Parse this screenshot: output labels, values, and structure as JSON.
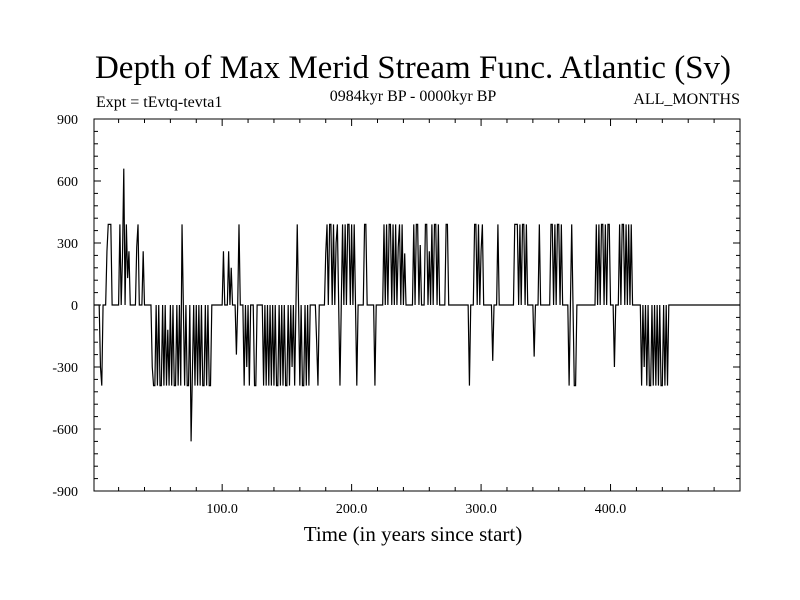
{
  "chart_data": {
    "type": "line",
    "title": "Depth of Max Merid Stream Func. Atlantic (Sv)",
    "subtitle_left": "Expt = tEvtq-tevta1",
    "subtitle_center": "0984kyr BP - 0000kyr BP",
    "subtitle_right": "ALL_MONTHS",
    "xlabel": "Time (in years since start)",
    "ylabel": "",
    "xlim": [
      1,
      500
    ],
    "ylim": [
      -900,
      900
    ],
    "x_ticks": [
      100,
      200,
      300,
      400
    ],
    "x_tick_labels": [
      "100.0",
      "200.0",
      "300.0",
      "400.0"
    ],
    "y_ticks": [
      -900,
      -600,
      -300,
      0,
      300,
      600,
      900
    ],
    "y_tick_labels": [
      "-900",
      "-600",
      "-300",
      "0",
      "300",
      "600",
      "900"
    ],
    "grid": false,
    "series": [
      {
        "name": "Depth of Max Merid Stream Func.",
        "color": "#000000",
        "points": [
          [
            1,
            0
          ],
          [
            5,
            0
          ],
          [
            6,
            -300
          ],
          [
            7,
            -390
          ],
          [
            8,
            0
          ],
          [
            10,
            0
          ],
          [
            11,
            260
          ],
          [
            12,
            390
          ],
          [
            14,
            390
          ],
          [
            15,
            0
          ],
          [
            20,
            0
          ],
          [
            21,
            390
          ],
          [
            22,
            0
          ],
          [
            23,
            230
          ],
          [
            24,
            660
          ],
          [
            25,
            0
          ],
          [
            26,
            390
          ],
          [
            27,
            130
          ],
          [
            28,
            260
          ],
          [
            29,
            0
          ],
          [
            33,
            0
          ],
          [
            34,
            280
          ],
          [
            35,
            390
          ],
          [
            36,
            0
          ],
          [
            38,
            0
          ],
          [
            39,
            260
          ],
          [
            40,
            0
          ],
          [
            45,
            0
          ],
          [
            46,
            -300
          ],
          [
            47,
            -390
          ],
          [
            48,
            -390
          ],
          [
            49,
            0
          ],
          [
            50,
            -390
          ],
          [
            51,
            0
          ],
          [
            52,
            -390
          ],
          [
            53,
            -390
          ],
          [
            54,
            0
          ],
          [
            55,
            -390
          ],
          [
            56,
            0
          ],
          [
            57,
            -390
          ],
          [
            58,
            -120
          ],
          [
            59,
            -390
          ],
          [
            60,
            0
          ],
          [
            61,
            -390
          ],
          [
            62,
            0
          ],
          [
            63,
            -390
          ],
          [
            64,
            -390
          ],
          [
            65,
            0
          ],
          [
            66,
            -390
          ],
          [
            67,
            0
          ],
          [
            68,
            -390
          ],
          [
            69,
            390
          ],
          [
            70,
            0
          ],
          [
            71,
            -390
          ],
          [
            72,
            0
          ],
          [
            73,
            -390
          ],
          [
            74,
            -390
          ],
          [
            75,
            0
          ],
          [
            76,
            -660
          ],
          [
            77,
            -330
          ],
          [
            78,
            0
          ],
          [
            79,
            -390
          ],
          [
            80,
            0
          ],
          [
            81,
            -390
          ],
          [
            82,
            0
          ],
          [
            83,
            -390
          ],
          [
            84,
            0
          ],
          [
            85,
            -390
          ],
          [
            86,
            -390
          ],
          [
            87,
            0
          ],
          [
            88,
            -390
          ],
          [
            89,
            0
          ],
          [
            90,
            -390
          ],
          [
            91,
            -390
          ],
          [
            92,
            0
          ],
          [
            100,
            0
          ],
          [
            101,
            260
          ],
          [
            102,
            0
          ],
          [
            104,
            0
          ],
          [
            105,
            260
          ],
          [
            106,
            0
          ],
          [
            107,
            180
          ],
          [
            108,
            0
          ],
          [
            110,
            0
          ],
          [
            111,
            -240
          ],
          [
            112,
            0
          ],
          [
            113,
            390
          ],
          [
            114,
            0
          ],
          [
            116,
            0
          ],
          [
            117,
            -390
          ],
          [
            118,
            0
          ],
          [
            119,
            -300
          ],
          [
            120,
            0
          ],
          [
            121,
            -390
          ],
          [
            122,
            0
          ],
          [
            124,
            0
          ],
          [
            125,
            -390
          ],
          [
            126,
            -390
          ],
          [
            127,
            0
          ],
          [
            131,
            0
          ],
          [
            132,
            -390
          ],
          [
            133,
            0
          ],
          [
            134,
            -390
          ],
          [
            135,
            0
          ],
          [
            136,
            -390
          ],
          [
            137,
            0
          ],
          [
            138,
            -390
          ],
          [
            139,
            0
          ],
          [
            140,
            -390
          ],
          [
            141,
            0
          ],
          [
            142,
            -390
          ],
          [
            143,
            -390
          ],
          [
            144,
            0
          ],
          [
            145,
            -390
          ],
          [
            146,
            0
          ],
          [
            147,
            -390
          ],
          [
            148,
            0
          ],
          [
            149,
            -390
          ],
          [
            150,
            -390
          ],
          [
            151,
            0
          ],
          [
            152,
            -390
          ],
          [
            153,
            0
          ],
          [
            154,
            -300
          ],
          [
            155,
            0
          ],
          [
            156,
            -390
          ],
          [
            157,
            0
          ],
          [
            158,
            390
          ],
          [
            159,
            0
          ],
          [
            160,
            -390
          ],
          [
            161,
            0
          ],
          [
            162,
            -390
          ],
          [
            163,
            -390
          ],
          [
            164,
            0
          ],
          [
            165,
            -390
          ],
          [
            166,
            0
          ],
          [
            167,
            -390
          ],
          [
            168,
            0
          ],
          [
            172,
            0
          ],
          [
            173,
            -180
          ],
          [
            174,
            -390
          ],
          [
            175,
            0
          ],
          [
            179,
            0
          ],
          [
            180,
            250
          ],
          [
            181,
            390
          ],
          [
            182,
            0
          ],
          [
            183,
            390
          ],
          [
            184,
            390
          ],
          [
            185,
            0
          ],
          [
            186,
            390
          ],
          [
            187,
            0
          ],
          [
            188,
            300
          ],
          [
            189,
            390
          ],
          [
            190,
            0
          ],
          [
            191,
            -390
          ],
          [
            192,
            0
          ],
          [
            193,
            390
          ],
          [
            194,
            0
          ],
          [
            195,
            390
          ],
          [
            196,
            0
          ],
          [
            197,
            390
          ],
          [
            198,
            390
          ],
          [
            199,
            0
          ],
          [
            200,
            390
          ],
          [
            201,
            0
          ],
          [
            202,
            390
          ],
          [
            203,
            0
          ],
          [
            204,
            -390
          ],
          [
            205,
            0
          ],
          [
            209,
            0
          ],
          [
            210,
            390
          ],
          [
            211,
            390
          ],
          [
            212,
            0
          ],
          [
            217,
            0
          ],
          [
            218,
            -390
          ],
          [
            219,
            0
          ],
          [
            224,
            0
          ],
          [
            225,
            390
          ],
          [
            226,
            0
          ],
          [
            227,
            390
          ],
          [
            228,
            0
          ],
          [
            229,
            390
          ],
          [
            230,
            390
          ],
          [
            231,
            0
          ],
          [
            232,
            390
          ],
          [
            233,
            0
          ],
          [
            234,
            390
          ],
          [
            235,
            0
          ],
          [
            236,
            280
          ],
          [
            237,
            390
          ],
          [
            238,
            0
          ],
          [
            239,
            390
          ],
          [
            240,
            0
          ],
          [
            241,
            250
          ],
          [
            242,
            0
          ],
          [
            247,
            0
          ],
          [
            248,
            390
          ],
          [
            249,
            0
          ],
          [
            250,
            390
          ],
          [
            251,
            390
          ],
          [
            252,
            0
          ],
          [
            253,
            290
          ],
          [
            254,
            0
          ],
          [
            256,
            0
          ],
          [
            257,
            390
          ],
          [
            258,
            390
          ],
          [
            259,
            0
          ],
          [
            260,
            260
          ],
          [
            261,
            0
          ],
          [
            262,
            390
          ],
          [
            263,
            0
          ],
          [
            264,
            390
          ],
          [
            265,
            390
          ],
          [
            266,
            0
          ],
          [
            267,
            390
          ],
          [
            268,
            0
          ],
          [
            272,
            0
          ],
          [
            273,
            390
          ],
          [
            274,
            390
          ],
          [
            275,
            0
          ],
          [
            290,
            0
          ],
          [
            291,
            -390
          ],
          [
            292,
            0
          ],
          [
            294,
            0
          ],
          [
            295,
            390
          ],
          [
            296,
            390
          ],
          [
            297,
            0
          ],
          [
            298,
            390
          ],
          [
            299,
            0
          ],
          [
            300,
            260
          ],
          [
            301,
            390
          ],
          [
            302,
            0
          ],
          [
            308,
            0
          ],
          [
            309,
            -270
          ],
          [
            310,
            0
          ],
          [
            312,
            0
          ],
          [
            313,
            390
          ],
          [
            314,
            0
          ],
          [
            325,
            0
          ],
          [
            326,
            390
          ],
          [
            327,
            390
          ],
          [
            328,
            390
          ],
          [
            329,
            0
          ],
          [
            330,
            390
          ],
          [
            331,
            0
          ],
          [
            332,
            390
          ],
          [
            333,
            390
          ],
          [
            334,
            0
          ],
          [
            335,
            390
          ],
          [
            336,
            0
          ],
          [
            340,
            0
          ],
          [
            341,
            -250
          ],
          [
            342,
            0
          ],
          [
            344,
            0
          ],
          [
            345,
            390
          ],
          [
            346,
            0
          ],
          [
            353,
            0
          ],
          [
            354,
            390
          ],
          [
            355,
            390
          ],
          [
            356,
            0
          ],
          [
            357,
            390
          ],
          [
            358,
            0
          ],
          [
            359,
            390
          ],
          [
            360,
            390
          ],
          [
            361,
            0
          ],
          [
            362,
            390
          ],
          [
            363,
            0
          ],
          [
            367,
            0
          ],
          [
            368,
            -390
          ],
          [
            369,
            0
          ],
          [
            370,
            390
          ],
          [
            371,
            0
          ],
          [
            372,
            -390
          ],
          [
            373,
            -390
          ],
          [
            374,
            0
          ],
          [
            388,
            0
          ],
          [
            389,
            390
          ],
          [
            390,
            0
          ],
          [
            391,
            390
          ],
          [
            392,
            0
          ],
          [
            393,
            390
          ],
          [
            394,
            390
          ],
          [
            395,
            0
          ],
          [
            396,
            390
          ],
          [
            397,
            0
          ],
          [
            398,
            390
          ],
          [
            399,
            390
          ],
          [
            400,
            0
          ],
          [
            402,
            0
          ],
          [
            403,
            -300
          ],
          [
            404,
            0
          ],
          [
            406,
            0
          ],
          [
            407,
            390
          ],
          [
            408,
            0
          ],
          [
            409,
            390
          ],
          [
            410,
            390
          ],
          [
            411,
            0
          ],
          [
            412,
            390
          ],
          [
            413,
            0
          ],
          [
            414,
            390
          ],
          [
            415,
            0
          ],
          [
            416,
            390
          ],
          [
            417,
            0
          ],
          [
            423,
            0
          ],
          [
            424,
            -390
          ],
          [
            425,
            0
          ],
          [
            426,
            -300
          ],
          [
            427,
            0
          ],
          [
            428,
            -390
          ],
          [
            429,
            0
          ],
          [
            430,
            -390
          ],
          [
            431,
            -390
          ],
          [
            432,
            0
          ],
          [
            433,
            -390
          ],
          [
            434,
            0
          ],
          [
            435,
            -390
          ],
          [
            436,
            0
          ],
          [
            437,
            -390
          ],
          [
            438,
            0
          ],
          [
            439,
            -390
          ],
          [
            440,
            -390
          ],
          [
            441,
            0
          ],
          [
            442,
            -390
          ],
          [
            443,
            0
          ],
          [
            444,
            -390
          ],
          [
            445,
            0
          ]
        ]
      }
    ]
  }
}
